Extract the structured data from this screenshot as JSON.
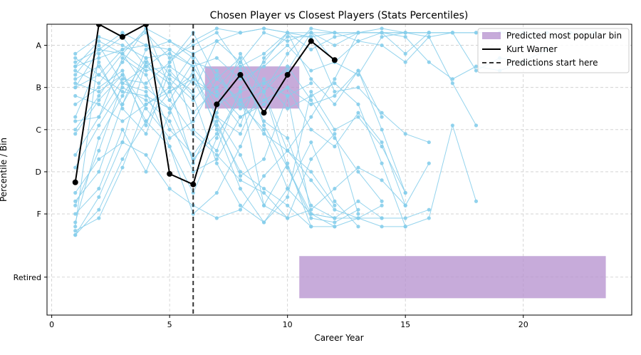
{
  "chart_data": {
    "type": "line",
    "title": "Chosen Player vs Closest Players (Stats Percentiles)",
    "xlabel": "Career Year",
    "ylabel": "Percentile / Bin",
    "xlim": [
      -0.2,
      24.6
    ],
    "x_ticks": [
      0,
      5,
      10,
      15,
      20
    ],
    "y_ticks": [
      {
        "value": 5,
        "label": "A"
      },
      {
        "value": 4,
        "label": "B"
      },
      {
        "value": 3,
        "label": "C"
      },
      {
        "value": 2,
        "label": "D"
      },
      {
        "value": 1,
        "label": "F"
      },
      {
        "value": -0.5,
        "label": "Retired"
      }
    ],
    "ylim": [
      -1.4,
      5.5
    ],
    "grid": true,
    "legend_position": "top-right",
    "legend": [
      {
        "label": "Predicted most popular bin",
        "kind": "patch"
      },
      {
        "label": "Kurt Warner",
        "kind": "line"
      },
      {
        "label": "Predictions start here",
        "kind": "dashed"
      }
    ],
    "prediction_start_x": 6,
    "predicted_bins": [
      {
        "x_start": 6.5,
        "x_end": 10.5,
        "y_low": 3.5,
        "y_high": 4.5
      },
      {
        "x_start": 10.5,
        "x_end": 23.5,
        "y_low": -1.0,
        "y_high": 0.0
      }
    ],
    "highlight_series": {
      "name": "Kurt Warner",
      "x": [
        1,
        2,
        3,
        4,
        5,
        6,
        7,
        8,
        9,
        10,
        11,
        12
      ],
      "y": [
        1.75,
        5.5,
        5.2,
        5.5,
        1.95,
        1.7,
        3.6,
        4.3,
        3.4,
        4.3,
        5.1,
        4.65
      ]
    },
    "comparison_series_color": "#87ceeb",
    "comparison_series": [
      {
        "x": [
          1,
          2,
          3,
          4,
          5,
          6,
          7,
          8,
          9,
          10,
          11,
          12,
          13,
          14,
          15,
          16
        ],
        "y": [
          4.5,
          5.1,
          4.8,
          4.0,
          3.5,
          4.2,
          3.8,
          4.4,
          3.2,
          2.8,
          1.2,
          0.9,
          0.9,
          0.9,
          0.9,
          1.1
        ]
      },
      {
        "x": [
          1,
          2,
          3,
          4,
          5,
          6,
          7,
          8,
          9,
          10,
          11,
          12,
          13,
          14,
          15
        ],
        "y": [
          0.7,
          4.8,
          5.2,
          4.5,
          4.9,
          3.0,
          2.5,
          4.0,
          4.6,
          5.3,
          4.2,
          3.6,
          4.4,
          3.0,
          1.5
        ]
      },
      {
        "x": [
          1,
          2,
          3,
          4,
          5,
          6,
          7,
          8,
          9,
          10,
          11,
          12,
          13,
          14
        ],
        "y": [
          3.0,
          3.8,
          4.6,
          5.4,
          4.0,
          2.2,
          3.4,
          4.8,
          3.9,
          2.1,
          1.0,
          0.9,
          1.3,
          0.9
        ]
      },
      {
        "x": [
          1,
          2,
          3,
          4,
          5,
          6,
          7,
          8,
          9,
          10,
          11,
          12,
          13,
          14,
          15,
          16,
          17,
          18
        ],
        "y": [
          4.2,
          4.5,
          3.6,
          4.9,
          5.1,
          4.7,
          3.3,
          2.9,
          4.1,
          4.4,
          5.3,
          5.3,
          5.3,
          5.3,
          5.3,
          5.2,
          4.1,
          3.1
        ]
      },
      {
        "x": [
          1,
          2,
          3,
          4,
          5,
          6,
          7,
          8,
          9,
          10,
          11,
          12,
          13
        ],
        "y": [
          1.2,
          2.5,
          4.1,
          3.9,
          2.6,
          1.5,
          2.8,
          3.9,
          1.2,
          0.9,
          2.3,
          2.9,
          1.0
        ]
      },
      {
        "x": [
          1,
          2,
          3,
          4,
          5,
          6,
          7,
          8,
          9,
          10,
          11,
          12,
          13,
          14,
          15,
          16,
          17,
          18,
          19,
          20,
          21,
          22,
          23
        ],
        "y": [
          4.6,
          4.9,
          5.3,
          5.0,
          4.3,
          3.9,
          5.1,
          5.3,
          5.4,
          5.3,
          4.9,
          5.2,
          5.3,
          5.4,
          5.3,
          5.3,
          5.3,
          5.3,
          5.3,
          5.3,
          5.3,
          5.3,
          5.3
        ]
      },
      {
        "x": [
          1,
          2,
          3,
          4,
          5,
          6,
          7,
          8,
          9,
          10,
          11,
          12,
          13,
          14
        ],
        "y": [
          0.5,
          1.1,
          2.3,
          3.2,
          3.9,
          4.2,
          3.1,
          2.0,
          1.6,
          1.2,
          0.7,
          0.7,
          0.9,
          1.2
        ]
      },
      {
        "x": [
          1,
          2,
          3,
          4,
          5,
          6,
          7,
          8,
          9,
          10,
          11,
          12,
          13,
          14,
          15,
          16
        ],
        "y": [
          3.6,
          4.0,
          4.4,
          3.1,
          4.6,
          5.3,
          4.2,
          3.7,
          2.9,
          2.5,
          3.3,
          4.2,
          5.3,
          5.3,
          5.3,
          5.3
        ]
      },
      {
        "x": [
          1,
          2,
          3,
          4,
          5,
          6,
          7,
          8,
          9,
          10,
          11,
          12
        ],
        "y": [
          2.4,
          3.3,
          4.7,
          4.3,
          3.0,
          2.4,
          3.2,
          1.9,
          2.3,
          3.8,
          1.0,
          0.7
        ]
      },
      {
        "x": [
          1,
          2,
          3,
          4,
          5,
          6,
          7,
          8,
          9,
          10,
          11,
          12,
          13,
          14,
          15,
          16,
          17,
          18
        ],
        "y": [
          4.3,
          5.0,
          4.1,
          4.5,
          4.1,
          3.4,
          4.0,
          4.6,
          3.9,
          2.5,
          1.8,
          1.1,
          0.9,
          0.7,
          0.7,
          0.9,
          3.1,
          1.3
        ]
      },
      {
        "x": [
          1,
          2,
          3,
          4,
          5,
          6,
          7,
          8,
          9,
          10,
          11,
          12,
          13,
          14,
          15
        ],
        "y": [
          1.0,
          1.6,
          3.0,
          2.0,
          3.4,
          4.4,
          3.0,
          1.6,
          0.8,
          1.4,
          3.9,
          3.0,
          3.3,
          2.6,
          1.5
        ]
      },
      {
        "x": [
          1,
          2,
          3,
          4,
          5,
          6,
          7,
          8,
          9,
          10,
          11,
          12,
          13,
          14,
          15,
          16
        ],
        "y": [
          4.0,
          4.9,
          4.8,
          4.4,
          4.5,
          4.1,
          3.8,
          3.1,
          4.7,
          5.2,
          5.2,
          3.9,
          4.0,
          3.4,
          2.9,
          2.7
        ]
      },
      {
        "x": [
          1,
          2,
          3,
          4,
          5,
          6,
          7,
          8,
          9,
          10,
          11
        ],
        "y": [
          0.6,
          0.9,
          2.1,
          3.6,
          3.9,
          4.3,
          3.3,
          2.4,
          1.2,
          2.2,
          0.7
        ]
      },
      {
        "x": [
          1,
          2,
          3,
          4,
          5,
          6,
          7,
          8,
          9,
          10,
          11,
          12,
          13,
          14,
          15,
          16,
          17,
          18,
          19,
          20,
          21
        ],
        "y": [
          4.7,
          4.3,
          3.9,
          3.8,
          3.5,
          2.3,
          2.9,
          3.7,
          3.9,
          4.8,
          5.4,
          5.3,
          5.1,
          5.3,
          5.2,
          4.6,
          4.2,
          4.5,
          4.4,
          4.6,
          4.9
        ]
      },
      {
        "x": [
          1,
          2,
          3,
          4,
          5,
          6,
          7,
          8,
          9,
          10,
          11,
          12,
          13
        ],
        "y": [
          2.9,
          3.7,
          4.3,
          3.5,
          2.8,
          3.2,
          4.2,
          4.7,
          3.1,
          2.1,
          0.9,
          0.8,
          1.1
        ]
      },
      {
        "x": [
          1,
          2,
          3,
          4,
          5,
          6,
          7,
          8,
          9,
          10,
          11,
          12,
          13,
          14,
          15,
          16
        ],
        "y": [
          4.4,
          4.1,
          4.8,
          5.4,
          5.1,
          4.8,
          3.9,
          3.3,
          3.6,
          4.0,
          3.0,
          2.6,
          3.4,
          2.7,
          1.2,
          2.2
        ]
      },
      {
        "x": [
          1,
          2,
          3,
          4,
          5,
          6,
          7,
          8,
          9,
          10,
          11,
          12
        ],
        "y": [
          1.3,
          2.0,
          3.6,
          4.6,
          4.2,
          3.7,
          4.3,
          3.6,
          3.0,
          1.6,
          1.0,
          0.9
        ]
      },
      {
        "x": [
          1,
          2,
          3,
          4,
          5,
          6,
          7,
          8,
          9,
          10,
          11,
          12,
          13,
          14,
          15,
          16,
          17,
          18,
          19,
          20
        ],
        "y": [
          3.2,
          3.3,
          4.2,
          4.1,
          4.6,
          5.1,
          5.4,
          5.3,
          5.4,
          5.3,
          5.3,
          5.0,
          5.3,
          5.3,
          5.3,
          5.3,
          5.3,
          4.4,
          4.7,
          4.6
        ]
      },
      {
        "x": [
          1,
          2,
          3,
          4,
          5,
          6,
          7,
          8,
          9,
          10,
          11,
          12,
          13,
          14
        ],
        "y": [
          4.1,
          3.9,
          4.3,
          3.2,
          2.6,
          1.0,
          1.5,
          2.6,
          3.9,
          4.5,
          3.7,
          2.8,
          2.0,
          1.3
        ]
      },
      {
        "x": [
          1,
          2,
          3,
          4,
          5,
          6,
          7,
          8,
          9,
          10,
          11,
          12,
          13,
          14,
          15,
          16,
          17
        ],
        "y": [
          0.8,
          2.8,
          3.8,
          4.7,
          4.8,
          4.5,
          4.7,
          4.2,
          4.5,
          5.0,
          4.4,
          4.6,
          5.1,
          5.0,
          4.6,
          5.2,
          5.3
        ]
      },
      {
        "x": [
          1,
          2,
          3,
          4,
          5,
          6,
          7,
          8,
          9,
          10,
          11,
          12,
          13
        ],
        "y": [
          3.3,
          4.6,
          3.5,
          2.9,
          4.4,
          3.8,
          2.2,
          1.2,
          0.8,
          1.6,
          2.7,
          1.3,
          0.7
        ]
      },
      {
        "x": [
          1,
          2,
          3,
          4,
          5,
          6,
          7,
          8,
          9,
          10,
          11,
          12,
          13,
          14,
          15
        ],
        "y": [
          4.8,
          5.2,
          5.0,
          4.7,
          3.7,
          4.6,
          4.4,
          3.5,
          4.2,
          3.5,
          3.8,
          4.1,
          3.6,
          2.2,
          0.7
        ]
      },
      {
        "x": [
          1,
          2,
          3,
          4,
          5,
          6,
          7,
          8,
          9,
          10,
          11,
          12
        ],
        "y": [
          1.5,
          2.3,
          2.7,
          2.4,
          1.6,
          1.2,
          0.9,
          1.1,
          1.9,
          2.5,
          2.0,
          1.2
        ]
      },
      {
        "x": [
          1,
          2,
          3,
          4,
          5,
          6,
          7,
          8,
          9,
          10,
          11,
          12,
          13,
          14,
          15,
          16,
          17,
          18,
          19
        ],
        "y": [
          4.0,
          4.3,
          4.9,
          5.3,
          4.7,
          5.0,
          5.3,
          4.5,
          4.8,
          5.3,
          5.2,
          5.3,
          5.3,
          5.3,
          4.8,
          5.3,
          5.3,
          5.3,
          5.3
        ]
      },
      {
        "x": [
          1,
          2,
          3,
          4,
          5,
          6,
          7,
          8,
          9,
          10,
          11,
          12,
          13,
          14
        ],
        "y": [
          2.1,
          3.1,
          4.0,
          3.7,
          3.2,
          2.0,
          2.3,
          3.3,
          3.7,
          4.0,
          3.6,
          3.8,
          4.4,
          3.3
        ]
      },
      {
        "x": [
          1,
          2,
          3,
          4,
          5,
          6,
          7,
          8,
          9,
          10,
          11,
          12,
          13,
          14,
          15,
          16
        ],
        "y": [
          3.8,
          3.6,
          3.2,
          3.6,
          4.0,
          4.8,
          5.1,
          4.6,
          5.3,
          5.1,
          5.3,
          4.6,
          4.3,
          5.2,
          5.3,
          5.3
        ]
      },
      {
        "x": [
          1,
          2,
          3,
          4,
          5,
          6,
          7,
          8,
          9,
          10,
          11
        ],
        "y": [
          4.5,
          4.7,
          4.9,
          5.0,
          4.9,
          4.5,
          3.6,
          3.9,
          4.1,
          3.8,
          4.1
        ]
      },
      {
        "x": [
          1,
          2,
          3,
          4,
          5,
          6,
          7,
          8,
          9,
          10,
          11,
          12,
          13,
          14,
          15
        ],
        "y": [
          0.5,
          1.4,
          2.7,
          4.6,
          3.7,
          2.9,
          2.4,
          1.8,
          1.5,
          0.9,
          1.1,
          1.6,
          2.1,
          1.8,
          1.2
        ]
      }
    ]
  }
}
